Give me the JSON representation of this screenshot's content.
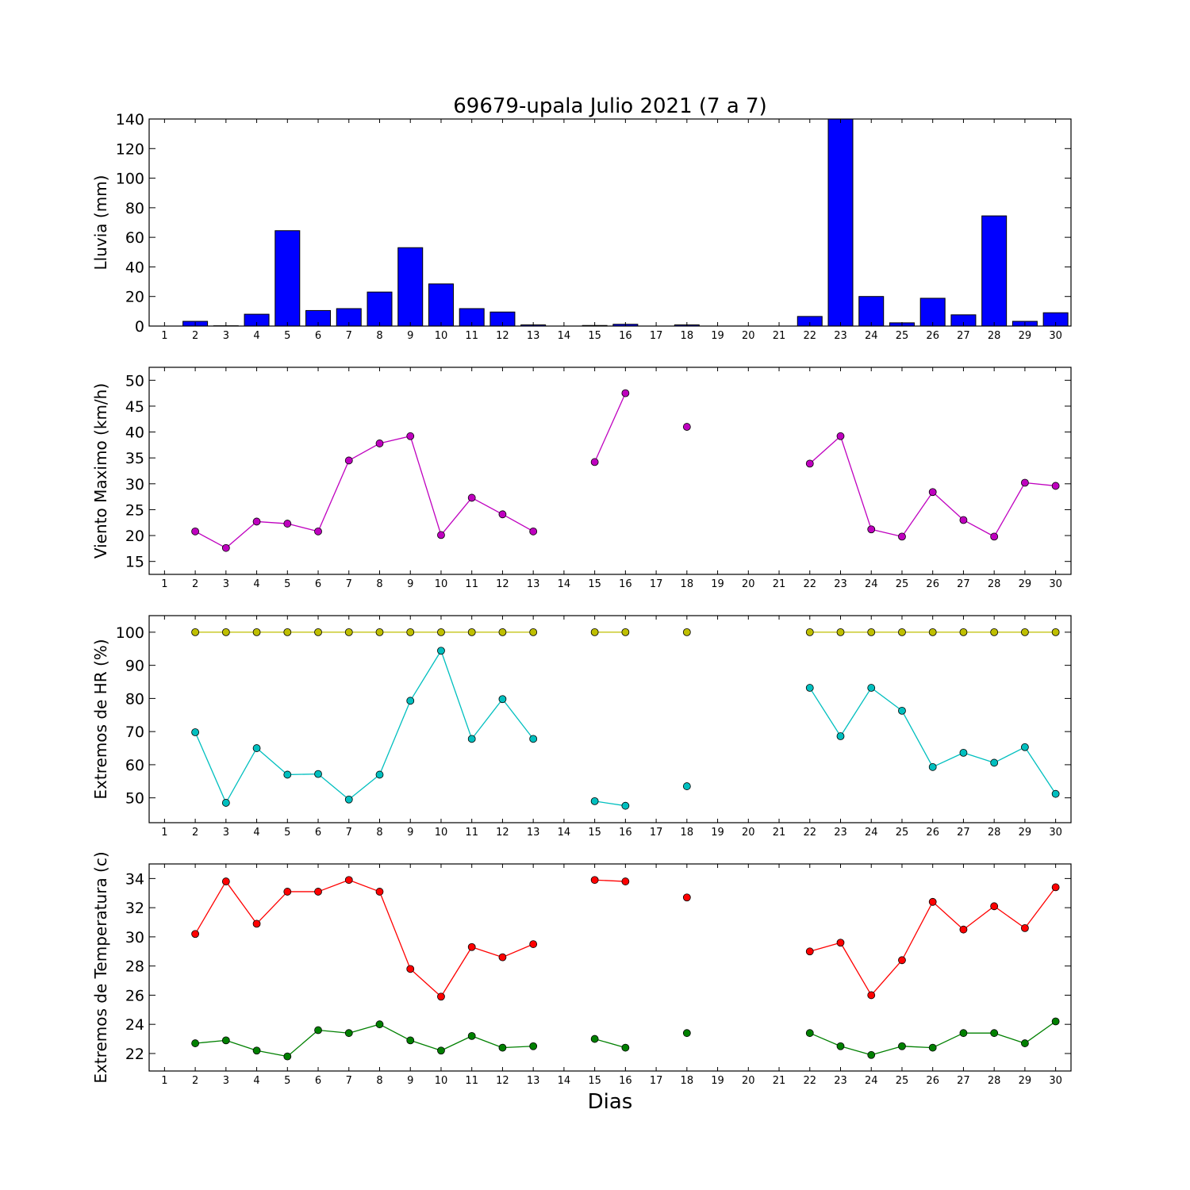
{
  "title": "69679-upala Julio 2021  (7 a 7)",
  "xlabel": "Dias",
  "x_ticks": [
    1,
    2,
    3,
    4,
    5,
    6,
    7,
    8,
    9,
    10,
    11,
    12,
    13,
    14,
    15,
    16,
    17,
    18,
    19,
    20,
    21,
    22,
    23,
    24,
    25,
    26,
    27,
    28,
    29,
    30
  ],
  "colors": {
    "rain": "#0000ff",
    "wind": "#bf00bf",
    "hr_max": "#bfbf00",
    "hr_min": "#00bfbf",
    "temp_max": "#ff0000",
    "temp_min": "#008000"
  },
  "chart_data": [
    {
      "type": "bar",
      "ylabel": "Lluvia (mm)",
      "ylim": [
        0,
        140
      ],
      "yticks": [
        0,
        20,
        40,
        60,
        80,
        100,
        120,
        140
      ],
      "x": [
        1,
        2,
        3,
        4,
        5,
        6,
        7,
        8,
        9,
        10,
        11,
        12,
        13,
        14,
        15,
        16,
        17,
        18,
        19,
        20,
        21,
        22,
        23,
        24,
        25,
        26,
        27,
        28,
        29,
        30
      ],
      "series": [
        {
          "values": [
            0,
            3.2,
            0.2,
            8.0,
            64.5,
            10.5,
            11.8,
            23.0,
            53.0,
            28.5,
            11.8,
            9.5,
            0.8,
            0,
            0.4,
            1.2,
            0,
            0.8,
            0,
            0,
            0,
            6.5,
            140,
            20.0,
            2.2,
            18.8,
            7.6,
            74.5,
            3.2,
            9.0
          ]
        }
      ]
    },
    {
      "type": "line",
      "ylabel": "Viento Maximo (km/h)",
      "ylim": [
        12.5,
        52.5
      ],
      "yticks": [
        15,
        20,
        25,
        30,
        35,
        40,
        45,
        50
      ],
      "x": [
        1,
        2,
        3,
        4,
        5,
        6,
        7,
        8,
        9,
        10,
        11,
        12,
        13,
        14,
        15,
        16,
        17,
        18,
        19,
        20,
        21,
        22,
        23,
        24,
        25,
        26,
        27,
        28,
        29,
        30
      ],
      "series": [
        {
          "values": [
            null,
            20.8,
            17.6,
            22.7,
            22.3,
            20.8,
            34.5,
            37.8,
            39.2,
            20.1,
            27.3,
            24.1,
            20.8,
            null,
            34.2,
            47.5,
            null,
            41.0,
            null,
            null,
            null,
            33.9,
            39.2,
            21.2,
            19.8,
            28.4,
            23.0,
            19.8,
            30.2,
            29.6
          ]
        }
      ]
    },
    {
      "type": "line",
      "ylabel": "Extremos de HR (%)",
      "ylim": [
        42.5,
        105
      ],
      "yticks": [
        50,
        60,
        70,
        80,
        90,
        100
      ],
      "x": [
        1,
        2,
        3,
        4,
        5,
        6,
        7,
        8,
        9,
        10,
        11,
        12,
        13,
        14,
        15,
        16,
        17,
        18,
        19,
        20,
        21,
        22,
        23,
        24,
        25,
        26,
        27,
        28,
        29,
        30
      ],
      "series": [
        {
          "values": [
            null,
            100,
            100,
            100,
            100,
            100,
            100,
            100,
            100,
            100,
            100,
            100,
            100,
            null,
            100,
            100,
            null,
            100,
            null,
            null,
            null,
            100,
            100,
            100,
            100,
            100,
            100,
            100,
            100,
            100
          ]
        },
        {
          "values": [
            null,
            69.8,
            48.5,
            65.0,
            57.0,
            57.2,
            49.5,
            57.0,
            79.3,
            94.4,
            67.8,
            79.8,
            67.8,
            null,
            49.0,
            47.6,
            null,
            53.5,
            null,
            null,
            null,
            83.2,
            68.6,
            83.2,
            76.3,
            59.3,
            63.6,
            60.6,
            65.3,
            51.2
          ]
        }
      ]
    },
    {
      "type": "line",
      "ylabel": "Extremos de Temperatura (c)",
      "ylim": [
        20.8,
        35
      ],
      "yticks": [
        22,
        24,
        26,
        28,
        30,
        32,
        34
      ],
      "x": [
        1,
        2,
        3,
        4,
        5,
        6,
        7,
        8,
        9,
        10,
        11,
        12,
        13,
        14,
        15,
        16,
        17,
        18,
        19,
        20,
        21,
        22,
        23,
        24,
        25,
        26,
        27,
        28,
        29,
        30
      ],
      "series": [
        {
          "values": [
            null,
            30.2,
            33.8,
            30.9,
            33.1,
            33.1,
            33.9,
            33.1,
            27.8,
            25.9,
            29.3,
            28.6,
            29.5,
            null,
            33.9,
            33.8,
            null,
            32.7,
            null,
            null,
            null,
            29.0,
            29.6,
            26.0,
            28.4,
            32.4,
            30.5,
            32.1,
            30.6,
            33.4
          ]
        },
        {
          "values": [
            null,
            22.7,
            22.9,
            22.2,
            21.8,
            23.6,
            23.4,
            24.0,
            22.9,
            22.2,
            23.2,
            22.4,
            22.5,
            null,
            23.0,
            22.4,
            null,
            23.4,
            null,
            null,
            null,
            23.4,
            22.5,
            21.9,
            22.5,
            22.4,
            23.4,
            23.4,
            22.7,
            24.2
          ]
        }
      ]
    }
  ]
}
